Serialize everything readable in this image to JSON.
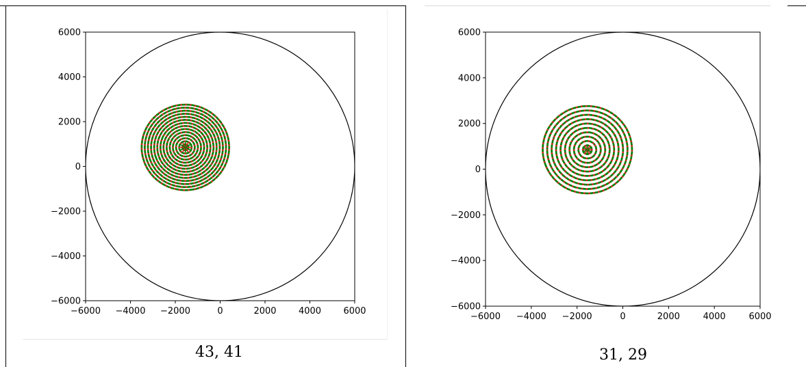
{
  "chart_data": [
    {
      "type": "scatter",
      "caption": "43,  41",
      "xlim": [
        -6000,
        6000
      ],
      "ylim": [
        -6000,
        6000
      ],
      "xticks": [
        -6000,
        -4000,
        -2000,
        0,
        2000,
        4000,
        6000
      ],
      "yticks": [
        6000,
        4000,
        2000,
        0,
        -2000,
        -4000,
        -6000
      ],
      "tick_labels_x": [
        "−6000",
        "−4000",
        "−2000",
        "0",
        "2000",
        "4000",
        "6000"
      ],
      "tick_labels_y": [
        "6000",
        "4000",
        "2000",
        "0",
        "−2000",
        "−4000",
        "−6000"
      ],
      "grid": false,
      "boundary_circle": {
        "center": [
          0,
          0
        ],
        "radius": 6000,
        "color": "#000000"
      },
      "cluster": {
        "center": [
          -1550,
          850
        ],
        "radius": 1950
      },
      "rings": [
        43,
        41
      ],
      "series_colors": [
        "#d62728",
        "#008000"
      ]
    },
    {
      "type": "scatter",
      "caption": "31,  29",
      "xlim": [
        -6000,
        6000
      ],
      "ylim": [
        -6000,
        6000
      ],
      "xticks": [
        -6000,
        -4000,
        -2000,
        0,
        2000,
        4000,
        6000
      ],
      "yticks": [
        6000,
        4000,
        2000,
        0,
        -2000,
        -4000,
        -6000
      ],
      "tick_labels_x": [
        "−6000",
        "−4000",
        "−2000",
        "0",
        "2000",
        "4000",
        "6000"
      ],
      "tick_labels_y": [
        "6000",
        "4000",
        "2000",
        "0",
        "−2000",
        "−4000",
        "−6000"
      ],
      "grid": false,
      "boundary_circle": {
        "center": [
          0,
          0
        ],
        "radius": 6000,
        "color": "#000000"
      },
      "cluster": {
        "center": [
          -1550,
          850
        ],
        "radius": 1950
      },
      "rings": [
        31,
        29
      ],
      "series_colors": [
        "#d62728",
        "#008000"
      ]
    }
  ]
}
